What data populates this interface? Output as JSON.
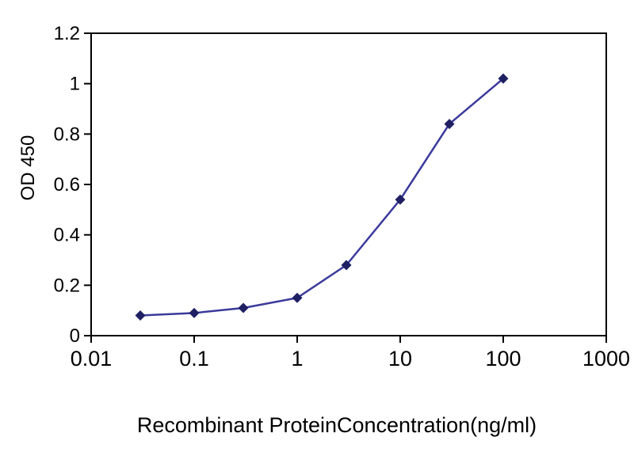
{
  "chart_data": {
    "type": "line",
    "title": "",
    "xlabel": "Recombinant ProteinConcentration(ng/ml)",
    "ylabel": "OD 450",
    "x_scale": "log",
    "xlim": [
      0.01,
      1000
    ],
    "ylim": [
      0,
      1.2
    ],
    "x_ticks": [
      0.01,
      0.1,
      1,
      10,
      100,
      1000
    ],
    "y_ticks": [
      0,
      0.2,
      0.4,
      0.6,
      0.8,
      1,
      1.2
    ],
    "grid": false,
    "legend": false,
    "axis_color": "#000000",
    "background": "#ffffff",
    "series": [
      {
        "name": "OD 450",
        "marker": "diamond",
        "line_color": "#3a3a9c",
        "marker_color": "#1f2063",
        "x": [
          0.03,
          0.1,
          0.3,
          1,
          3,
          10,
          30,
          100
        ],
        "y": [
          0.08,
          0.09,
          0.11,
          0.15,
          0.28,
          0.54,
          0.84,
          1.02
        ]
      }
    ]
  }
}
